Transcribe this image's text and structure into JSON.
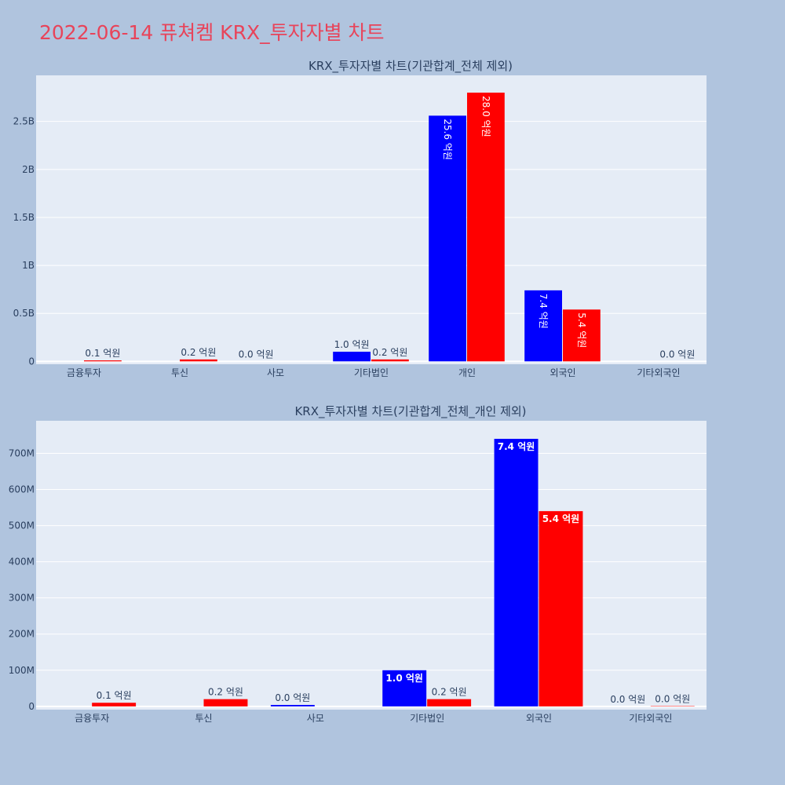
{
  "page": {
    "title": "2022-06-14 퓨쳐켐 KRX_투자자별 차트"
  },
  "colors": {
    "buy": "#0000ff",
    "sell": "#ff0000",
    "plot_bg": "#e5ecf6",
    "page_bg": "#b0c4de",
    "title": "#e8445a"
  },
  "chart_data": [
    {
      "type": "bar",
      "title": "KRX_투자자별 차트(기관합계_전체 제외)",
      "categories": [
        "금융투자",
        "투신",
        "사모",
        "기타법인",
        "개인",
        "외국인",
        "기타외국인"
      ],
      "series": [
        {
          "values": [
            0,
            0,
            0,
            100000000,
            2560000000,
            740000000,
            0
          ],
          "labels": [
            "",
            "",
            "0.0 억원",
            "1.0 억원",
            "25.6 억원",
            "7.4 억원",
            ""
          ]
        },
        {
          "values": [
            10000000,
            20000000,
            0,
            20000000,
            2800000000,
            540000000,
            0
          ],
          "labels": [
            "0.1 억원",
            "0.2 억원",
            "",
            "0.2 억원",
            "28.0 억원",
            "5.4 억원",
            "0.0 억원"
          ]
        }
      ],
      "ylim": [
        -30000000,
        2980000000
      ],
      "yticks": [
        0,
        500000000,
        1000000000,
        1500000000,
        2000000000,
        2500000000
      ],
      "ytick_labels": [
        "0",
        "0.5B",
        "1B",
        "1.5B",
        "2B",
        "2.5B"
      ],
      "grid": true,
      "legend": "none"
    },
    {
      "type": "bar",
      "title": "KRX_투자자별 차트(기관합계_전체_개인 제외)",
      "categories": [
        "금융투자",
        "투신",
        "사모",
        "기타법인",
        "외국인",
        "기타외국인"
      ],
      "series": [
        {
          "values": [
            0,
            0,
            4000000,
            100000000,
            740000000,
            0
          ],
          "labels": [
            "",
            "",
            "0.0 억원",
            "1.0 억원",
            "7.4 억원",
            "0.0 억원"
          ]
        },
        {
          "values": [
            10000000,
            20000000,
            0,
            20000000,
            540000000,
            1000000
          ],
          "labels": [
            "0.1 억원",
            "0.2 억원",
            "",
            "0.2 억원",
            "5.4 억원",
            "0.0 억원"
          ]
        }
      ],
      "ylim": [
        -9000000,
        790000000
      ],
      "yticks": [
        0,
        100000000,
        200000000,
        300000000,
        400000000,
        500000000,
        600000000,
        700000000
      ],
      "ytick_labels": [
        "0",
        "100M",
        "200M",
        "300M",
        "400M",
        "500M",
        "600M",
        "700M"
      ],
      "grid": true,
      "legend": "none"
    }
  ]
}
